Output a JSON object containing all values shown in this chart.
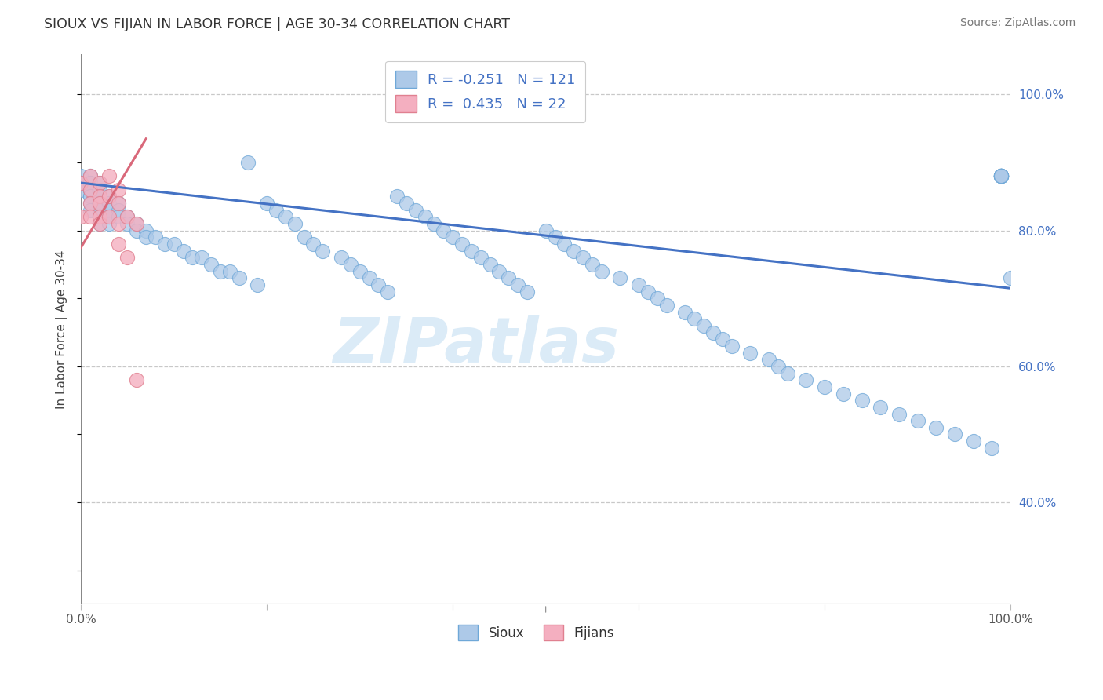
{
  "title": "SIOUX VS FIJIAN IN LABOR FORCE | AGE 30-34 CORRELATION CHART",
  "source_text": "Source: ZipAtlas.com",
  "ylabel_label": "In Labor Force | Age 30-34",
  "xlim": [
    0.0,
    1.0
  ],
  "ylim": [
    0.25,
    1.06
  ],
  "sioux_R": -0.251,
  "sioux_N": 121,
  "fijian_R": 0.435,
  "fijian_N": 22,
  "sioux_color": "#adc9e8",
  "fijian_color": "#f4afc0",
  "sioux_edge_color": "#6fa8d8",
  "fijian_edge_color": "#e08090",
  "sioux_line_color": "#4472c4",
  "fijian_line_color": "#d9687a",
  "legend_sioux_label": "Sioux",
  "legend_fijian_label": "Fijians",
  "background_color": "#ffffff",
  "watermark_text": "ZIPatlas",
  "sioux_x": [
    0.0,
    0.0,
    0.0,
    0.01,
    0.01,
    0.01,
    0.01,
    0.01,
    0.01,
    0.01,
    0.01,
    0.01,
    0.02,
    0.02,
    0.02,
    0.02,
    0.02,
    0.02,
    0.02,
    0.02,
    0.02,
    0.03,
    0.03,
    0.03,
    0.03,
    0.03,
    0.04,
    0.04,
    0.04,
    0.05,
    0.05,
    0.06,
    0.06,
    0.07,
    0.07,
    0.08,
    0.09,
    0.1,
    0.11,
    0.12,
    0.13,
    0.14,
    0.15,
    0.16,
    0.17,
    0.18,
    0.19,
    0.2,
    0.21,
    0.22,
    0.23,
    0.24,
    0.25,
    0.26,
    0.28,
    0.29,
    0.3,
    0.31,
    0.32,
    0.33,
    0.34,
    0.35,
    0.36,
    0.37,
    0.38,
    0.39,
    0.4,
    0.41,
    0.42,
    0.43,
    0.44,
    0.45,
    0.46,
    0.47,
    0.48,
    0.5,
    0.51,
    0.52,
    0.53,
    0.54,
    0.55,
    0.56,
    0.58,
    0.6,
    0.61,
    0.62,
    0.63,
    0.65,
    0.66,
    0.67,
    0.68,
    0.69,
    0.7,
    0.72,
    0.74,
    0.75,
    0.76,
    0.78,
    0.8,
    0.82,
    0.84,
    0.86,
    0.88,
    0.9,
    0.92,
    0.94,
    0.96,
    0.98,
    0.99,
    0.99,
    0.99,
    0.99,
    0.99,
    0.99,
    0.99,
    0.99,
    0.99,
    0.99,
    0.99,
    0.99,
    0.99,
    1.0
  ],
  "sioux_y": [
    0.88,
    0.87,
    0.86,
    0.88,
    0.87,
    0.87,
    0.86,
    0.86,
    0.85,
    0.85,
    0.84,
    0.83,
    0.87,
    0.86,
    0.86,
    0.85,
    0.84,
    0.84,
    0.83,
    0.82,
    0.81,
    0.85,
    0.84,
    0.83,
    0.82,
    0.81,
    0.84,
    0.83,
    0.82,
    0.82,
    0.81,
    0.81,
    0.8,
    0.8,
    0.79,
    0.79,
    0.78,
    0.78,
    0.77,
    0.76,
    0.76,
    0.75,
    0.74,
    0.74,
    0.73,
    0.9,
    0.72,
    0.84,
    0.83,
    0.82,
    0.81,
    0.79,
    0.78,
    0.77,
    0.76,
    0.75,
    0.74,
    0.73,
    0.72,
    0.71,
    0.85,
    0.84,
    0.83,
    0.82,
    0.81,
    0.8,
    0.79,
    0.78,
    0.77,
    0.76,
    0.75,
    0.74,
    0.73,
    0.72,
    0.71,
    0.8,
    0.79,
    0.78,
    0.77,
    0.76,
    0.75,
    0.74,
    0.73,
    0.72,
    0.71,
    0.7,
    0.69,
    0.68,
    0.67,
    0.66,
    0.65,
    0.64,
    0.63,
    0.62,
    0.61,
    0.6,
    0.59,
    0.58,
    0.57,
    0.56,
    0.55,
    0.54,
    0.53,
    0.52,
    0.51,
    0.5,
    0.49,
    0.48,
    0.88,
    0.88,
    0.88,
    0.88,
    0.88,
    0.88,
    0.88,
    0.88,
    0.88,
    0.88,
    0.88,
    0.88,
    0.88,
    0.73
  ],
  "fijian_x": [
    0.0,
    0.0,
    0.01,
    0.01,
    0.01,
    0.01,
    0.02,
    0.02,
    0.02,
    0.02,
    0.02,
    0.03,
    0.03,
    0.03,
    0.04,
    0.04,
    0.04,
    0.04,
    0.05,
    0.05,
    0.06,
    0.06
  ],
  "fijian_y": [
    0.87,
    0.82,
    0.88,
    0.86,
    0.84,
    0.82,
    0.87,
    0.85,
    0.84,
    0.82,
    0.81,
    0.88,
    0.85,
    0.82,
    0.86,
    0.84,
    0.81,
    0.78,
    0.82,
    0.76,
    0.81,
    0.58
  ],
  "sioux_line_x0": 0.0,
  "sioux_line_y0": 0.87,
  "sioux_line_x1": 1.0,
  "sioux_line_y1": 0.715,
  "fijian_line_x0": 0.0,
  "fijian_line_y0": 0.775,
  "fijian_line_x1": 0.07,
  "fijian_line_y1": 0.935
}
